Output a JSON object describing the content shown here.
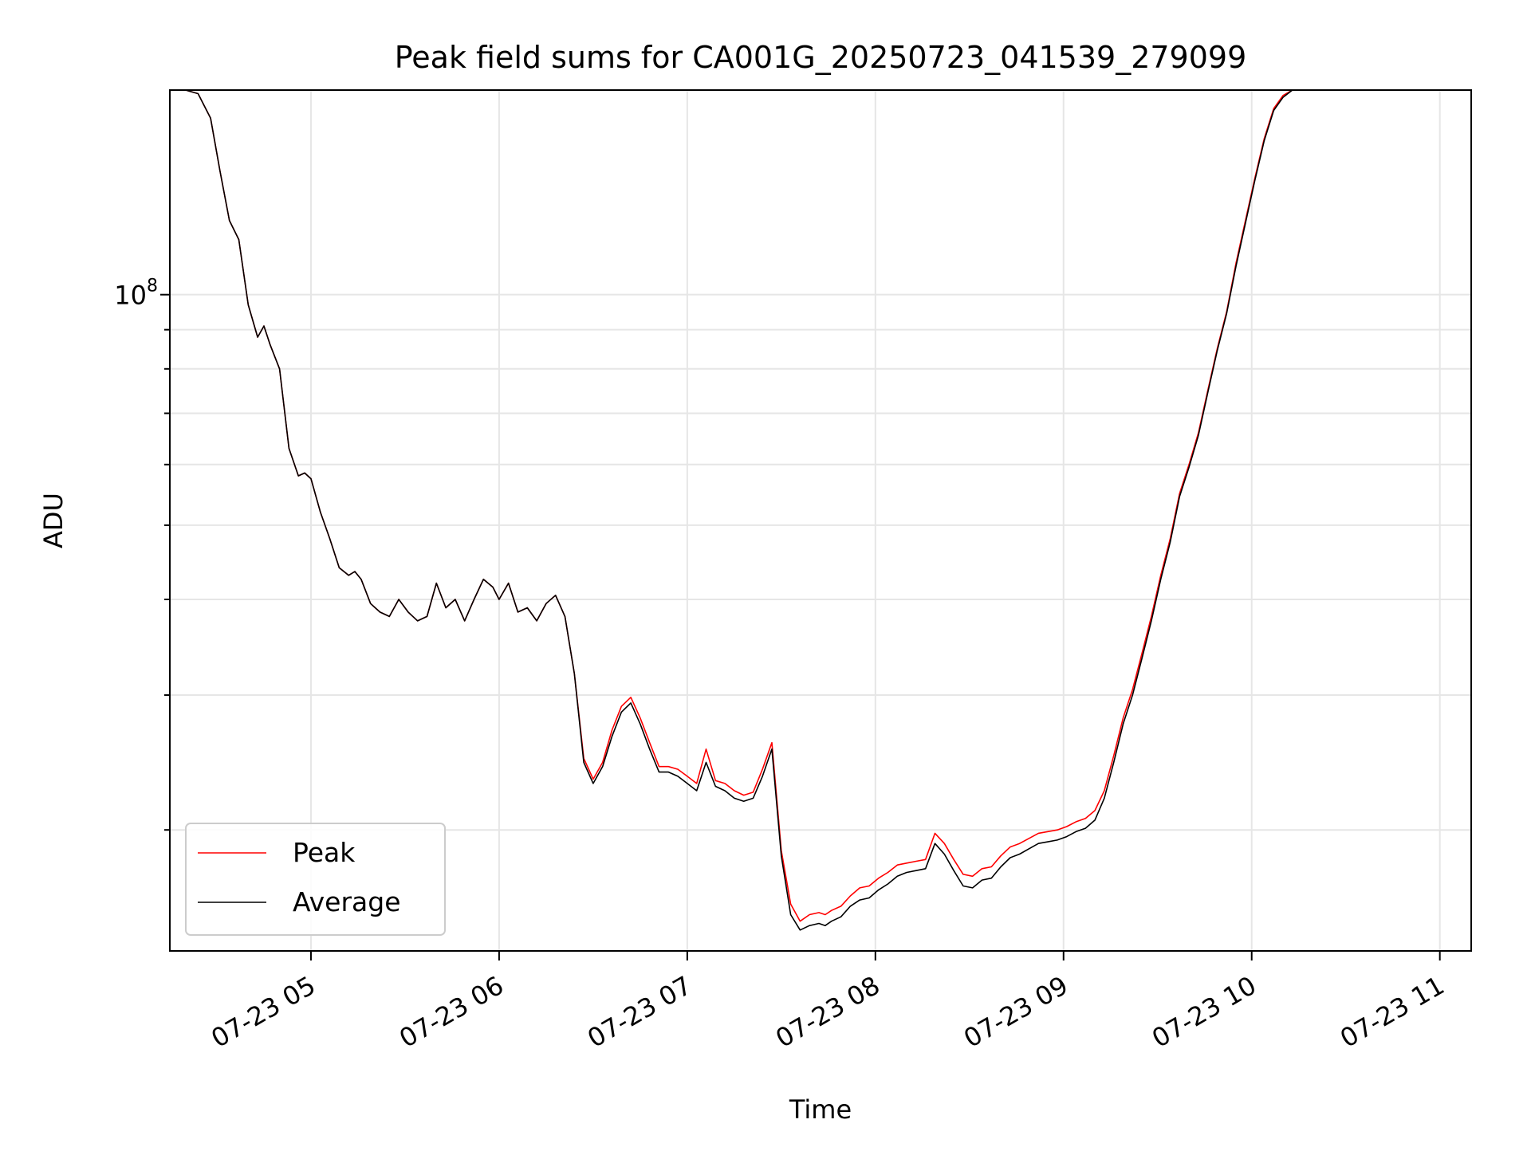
{
  "chart_data": {
    "type": "line",
    "title": "Peak field sums for CA001G_20250723_041539_279099",
    "xlabel": "Time",
    "ylabel": "ADU",
    "xlim": [
      "2025-07-23 04:15",
      "2025-07-23 11:10"
    ],
    "ylim": [
      13900000,
      185000000
    ],
    "yscale": "log",
    "xticks": [
      "07-23 05",
      "07-23 06",
      "07-23 07",
      "07-23 08",
      "07-23 09",
      "07-23 10",
      "07-23 11"
    ],
    "ytick_major": {
      "base": "10",
      "exponent": "8",
      "value": 100000000
    },
    "grid": true,
    "legend_position": "lower-left",
    "colors": {
      "peak": "#ff0000",
      "average": "#000000",
      "grid": "#e6e6e6"
    },
    "series": [
      {
        "name": "Peak",
        "x": [
          "04:15",
          "04:20",
          "04:24",
          "04:28",
          "04:31",
          "04:34",
          "04:37",
          "04:40",
          "04:43",
          "04:45",
          "04:47",
          "04:50",
          "04:53",
          "04:56",
          "04:58",
          "05:00",
          "05:03",
          "05:06",
          "05:09",
          "05:12",
          "05:14",
          "05:16",
          "05:19",
          "05:22",
          "05:25",
          "05:28",
          "05:31",
          "05:34",
          "05:37",
          "05:40",
          "05:43",
          "05:46",
          "05:49",
          "05:52",
          "05:55",
          "05:58",
          "06:00",
          "06:03",
          "06:06",
          "06:09",
          "06:12",
          "06:15",
          "06:18",
          "06:21",
          "06:24",
          "06:27",
          "06:30",
          "06:33",
          "06:36",
          "06:39",
          "06:42",
          "06:45",
          "06:48",
          "06:51",
          "06:54",
          "06:57",
          "07:00",
          "07:03",
          "07:06",
          "07:09",
          "07:12",
          "07:15",
          "07:18",
          "07:21",
          "07:24",
          "07:27",
          "07:30",
          "07:33",
          "07:36",
          "07:39",
          "07:42",
          "07:44",
          "07:46",
          "07:49",
          "07:52",
          "07:55",
          "07:58",
          "08:01",
          "08:04",
          "08:07",
          "08:10",
          "08:13",
          "08:16",
          "08:19",
          "08:22",
          "08:25",
          "08:28",
          "08:31",
          "08:34",
          "08:37",
          "08:40",
          "08:43",
          "08:46",
          "08:49",
          "08:52",
          "08:55",
          "08:58",
          "09:01",
          "09:04",
          "09:07",
          "09:10",
          "09:13",
          "09:16",
          "09:19",
          "09:22",
          "09:25",
          "09:28",
          "09:31",
          "09:34",
          "09:37",
          "09:40",
          "09:43",
          "09:46",
          "09:49",
          "09:52",
          "09:55",
          "09:58",
          "10:01",
          "10:04",
          "10:07",
          "10:10",
          "10:13",
          "10:16",
          "10:19",
          "10:22",
          "10:25",
          "10:28",
          "10:31",
          "10:34",
          "10:37",
          "10:40",
          "10:43",
          "10:46",
          "10:49",
          "10:52",
          "10:55",
          "10:58",
          "11:01",
          "11:04",
          "11:06"
        ],
        "values": [
          185,
          185,
          183,
          170,
          145,
          125,
          118,
          97,
          88,
          91,
          86,
          80,
          63,
          58,
          58.5,
          57.5,
          52,
          48,
          44,
          43,
          43.5,
          42.5,
          39.5,
          38.5,
          38,
          40,
          38.5,
          37.5,
          38,
          42,
          39,
          40,
          37.5,
          40,
          42.5,
          41.5,
          40,
          42,
          38.5,
          39,
          37.5,
          39.5,
          40.5,
          38,
          32,
          24.8,
          23.3,
          24.5,
          27,
          29,
          29.8,
          28,
          26,
          24.2,
          24.2,
          24,
          23.5,
          23,
          25.5,
          23.2,
          23,
          22.5,
          22.2,
          22.4,
          24,
          26,
          18.8,
          16,
          15.2,
          15.5,
          15.6,
          15.5,
          15.7,
          15.9,
          16.4,
          16.8,
          16.9,
          17.3,
          17.6,
          18,
          18.1,
          18.2,
          18.3,
          19.8,
          19.2,
          18.3,
          17.5,
          17.4,
          17.8,
          17.9,
          18.5,
          19,
          19.2,
          19.5,
          19.8,
          19.9,
          20,
          20.2,
          20.5,
          20.7,
          21.2,
          22.5,
          25,
          28,
          30.5,
          34,
          38,
          43,
          48,
          55,
          60,
          66,
          75,
          85,
          95,
          110,
          125,
          142,
          160,
          175,
          182,
          185,
          185,
          185,
          185,
          185,
          185,
          185,
          185,
          185,
          185,
          185,
          185,
          185,
          185,
          185,
          185,
          185,
          185,
          185
        ],
        "values_unit": "millions"
      },
      {
        "name": "Average",
        "x": [
          "04:15",
          "04:20",
          "04:24",
          "04:28",
          "04:31",
          "04:34",
          "04:37",
          "04:40",
          "04:43",
          "04:45",
          "04:47",
          "04:50",
          "04:53",
          "04:56",
          "04:58",
          "05:00",
          "05:03",
          "05:06",
          "05:09",
          "05:12",
          "05:14",
          "05:16",
          "05:19",
          "05:22",
          "05:25",
          "05:28",
          "05:31",
          "05:34",
          "05:37",
          "05:40",
          "05:43",
          "05:46",
          "05:49",
          "05:52",
          "05:55",
          "05:58",
          "06:00",
          "06:03",
          "06:06",
          "06:09",
          "06:12",
          "06:15",
          "06:18",
          "06:21",
          "06:24",
          "06:27",
          "06:30",
          "06:33",
          "06:36",
          "06:39",
          "06:42",
          "06:45",
          "06:48",
          "06:51",
          "06:54",
          "06:57",
          "07:00",
          "07:03",
          "07:06",
          "07:09",
          "07:12",
          "07:15",
          "07:18",
          "07:21",
          "07:24",
          "07:27",
          "07:30",
          "07:33",
          "07:36",
          "07:39",
          "07:42",
          "07:44",
          "07:46",
          "07:49",
          "07:52",
          "07:55",
          "07:58",
          "08:01",
          "08:04",
          "08:07",
          "08:10",
          "08:13",
          "08:16",
          "08:19",
          "08:22",
          "08:25",
          "08:28",
          "08:31",
          "08:34",
          "08:37",
          "08:40",
          "08:43",
          "08:46",
          "08:49",
          "08:52",
          "08:55",
          "08:58",
          "09:01",
          "09:04",
          "09:07",
          "09:10",
          "09:13",
          "09:16",
          "09:19",
          "09:22",
          "09:25",
          "09:28",
          "09:31",
          "09:34",
          "09:37",
          "09:40",
          "09:43",
          "09:46",
          "09:49",
          "09:52",
          "09:55",
          "09:58",
          "10:01",
          "10:04",
          "10:07",
          "10:10",
          "10:13",
          "10:16",
          "10:19",
          "10:22",
          "10:25",
          "10:28",
          "10:31",
          "10:34",
          "10:37",
          "10:40",
          "10:43",
          "10:46",
          "10:49",
          "10:52",
          "10:55",
          "10:58",
          "11:01",
          "11:04",
          "11:06"
        ],
        "values": [
          185,
          185,
          183,
          170,
          145,
          125,
          118,
          97,
          88,
          91,
          86,
          80,
          63,
          58,
          58.5,
          57.5,
          52,
          48,
          44,
          43,
          43.5,
          42.5,
          39.5,
          38.5,
          38,
          40,
          38.5,
          37.5,
          38,
          42,
          39,
          40,
          37.5,
          40,
          42.5,
          41.5,
          40,
          42,
          38.5,
          39,
          37.5,
          39.5,
          40.5,
          38,
          32,
          24.5,
          23,
          24.2,
          26.5,
          28.5,
          29.3,
          27.5,
          25.5,
          23.8,
          23.8,
          23.5,
          23,
          22.5,
          24.5,
          22.8,
          22.5,
          22,
          21.8,
          22,
          23.5,
          25.5,
          18.5,
          15.5,
          14.8,
          15,
          15.1,
          15,
          15.2,
          15.4,
          15.9,
          16.2,
          16.3,
          16.7,
          17,
          17.4,
          17.6,
          17.7,
          17.8,
          19.2,
          18.6,
          17.7,
          16.9,
          16.8,
          17.2,
          17.3,
          17.9,
          18.4,
          18.6,
          18.9,
          19.2,
          19.3,
          19.4,
          19.6,
          19.9,
          20.1,
          20.6,
          22,
          24.5,
          27.5,
          30,
          33.5,
          37.5,
          42.5,
          47.5,
          54.5,
          59.5,
          65.5,
          74.5,
          84.5,
          94.5,
          109,
          124,
          141,
          159,
          174,
          181,
          185,
          185,
          185,
          185,
          185,
          185,
          185,
          185,
          185,
          185,
          185,
          185,
          185,
          185,
          185,
          185,
          185,
          185,
          185
        ],
        "values_unit": "millions"
      }
    ]
  }
}
